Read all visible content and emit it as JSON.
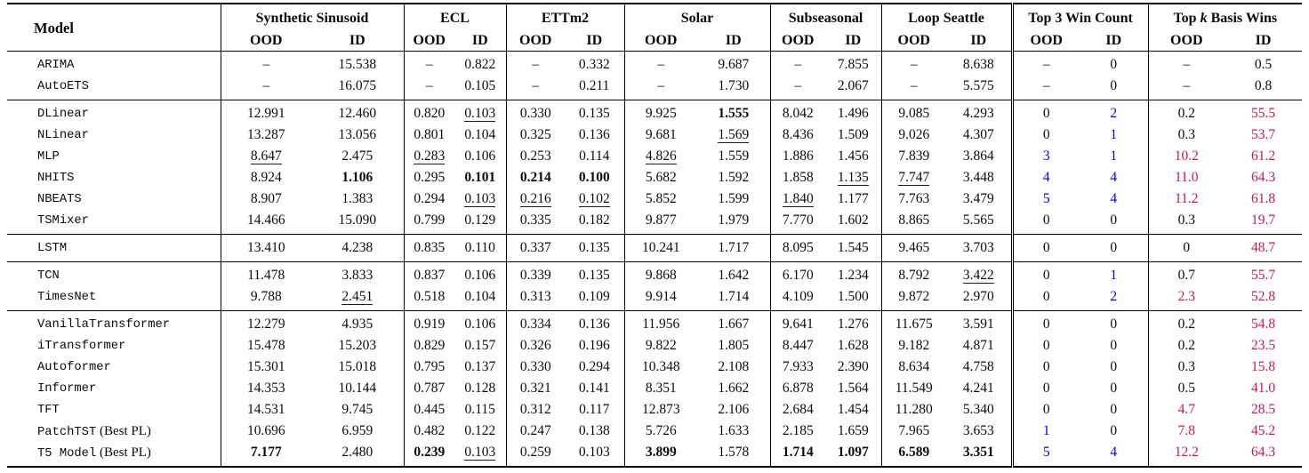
{
  "table": {
    "colors": {
      "blue": "#0000E6",
      "red": "#C2185B",
      "text": "#0b0b0b"
    },
    "header": {
      "model_label": "Model",
      "sub_headers": [
        "OOD",
        "ID"
      ],
      "groups": [
        {
          "label_parts": [
            {
              "t": "Synthetic Sinusoid"
            }
          ]
        },
        {
          "label_parts": [
            {
              "t": "ECL"
            }
          ]
        },
        {
          "label_parts": [
            {
              "t": "ETTm2"
            }
          ]
        },
        {
          "label_parts": [
            {
              "t": "Solar"
            }
          ]
        },
        {
          "label_parts": [
            {
              "t": "Subseasonal"
            }
          ]
        },
        {
          "label_parts": [
            {
              "t": "Loop Seattle"
            }
          ]
        },
        {
          "label_parts": [
            {
              "t": "Top 3 Win Count"
            }
          ]
        },
        {
          "label_parts": [
            {
              "t": "Top "
            },
            {
              "t": "k",
              "italic": true
            },
            {
              "t": " Basis Wins"
            }
          ]
        }
      ]
    },
    "groups": [
      {
        "rows": [
          {
            "model": "ARIMA",
            "suffix": "",
            "cells": [
              "–",
              "15.538",
              "–",
              "0.822",
              "–",
              "0.332",
              "–",
              "9.687",
              "–",
              "7.855",
              "–",
              "8.638",
              "–",
              "0",
              "–",
              "0.5"
            ]
          },
          {
            "model": "AutoETS",
            "suffix": "",
            "cells": [
              "–",
              "16.075",
              "–",
              "0.105",
              "–",
              "0.211",
              "–",
              "1.730",
              "–",
              "2.067",
              "–",
              "5.575",
              "–",
              "0",
              "–",
              "0.8"
            ]
          }
        ]
      },
      {
        "rows": [
          {
            "model": "DLinear",
            "suffix": "",
            "cells": [
              "12.991",
              "12.460",
              "0.820",
              {
                "v": "0.103",
                "u": true
              },
              "0.330",
              "0.135",
              "9.925",
              {
                "v": "1.555",
                "b": true
              },
              "8.042",
              "1.496",
              "9.085",
              "4.293",
              "0",
              {
                "v": "2",
                "c": "blue"
              },
              "0.2",
              {
                "v": "55.5",
                "c": "red"
              }
            ]
          },
          {
            "model": "NLinear",
            "suffix": "",
            "cells": [
              "13.287",
              "13.056",
              "0.801",
              "0.104",
              "0.325",
              "0.136",
              "9.681",
              {
                "v": "1.569",
                "u": true
              },
              "8.436",
              "1.509",
              "9.026",
              "4.307",
              "0",
              {
                "v": "1",
                "c": "blue"
              },
              "0.3",
              {
                "v": "53.7",
                "c": "red"
              }
            ]
          },
          {
            "model": "MLP",
            "suffix": "",
            "cells": [
              {
                "v": "8.647",
                "u": true
              },
              "2.475",
              {
                "v": "0.283",
                "u": true
              },
              "0.106",
              "0.253",
              "0.114",
              {
                "v": "4.826",
                "u": true
              },
              "1.559",
              "1.886",
              "1.456",
              "7.839",
              "3.864",
              {
                "v": "3",
                "c": "blue"
              },
              {
                "v": "1",
                "c": "blue"
              },
              {
                "v": "10.2",
                "c": "red"
              },
              {
                "v": "61.2",
                "c": "red"
              }
            ]
          },
          {
            "model": "NHITS",
            "suffix": "",
            "cells": [
              "8.924",
              {
                "v": "1.106",
                "b": true
              },
              "0.295",
              {
                "v": "0.101",
                "b": true
              },
              {
                "v": "0.214",
                "b": true
              },
              {
                "v": "0.100",
                "b": true
              },
              "5.682",
              "1.592",
              "1.858",
              {
                "v": "1.135",
                "u": true
              },
              {
                "v": "7.747",
                "u": true
              },
              "3.448",
              {
                "v": "4",
                "c": "blue"
              },
              {
                "v": "4",
                "c": "blue"
              },
              {
                "v": "11.0",
                "c": "red"
              },
              {
                "v": "64.3",
                "c": "red"
              }
            ]
          },
          {
            "model": "NBEATS",
            "suffix": "",
            "cells": [
              "8.907",
              "1.383",
              "0.294",
              {
                "v": "0.103",
                "u": true
              },
              {
                "v": "0.216",
                "u": true
              },
              {
                "v": "0.102",
                "u": true
              },
              "5.852",
              "1.599",
              {
                "v": "1.840",
                "u": true
              },
              "1.177",
              "7.763",
              "3.479",
              {
                "v": "5",
                "c": "blue"
              },
              {
                "v": "4",
                "c": "blue"
              },
              {
                "v": "11.2",
                "c": "red"
              },
              {
                "v": "61.8",
                "c": "red"
              }
            ]
          },
          {
            "model": "TSMixer",
            "suffix": "",
            "cells": [
              "14.466",
              "15.090",
              "0.799",
              "0.129",
              "0.335",
              "0.182",
              "9.877",
              "1.979",
              "7.770",
              "1.602",
              "8.865",
              "5.565",
              "0",
              "0",
              "0.3",
              {
                "v": "19.7",
                "c": "red"
              }
            ]
          }
        ]
      },
      {
        "rows": [
          {
            "model": "LSTM",
            "suffix": "",
            "cells": [
              "13.410",
              "4.238",
              "0.835",
              "0.110",
              "0.337",
              "0.135",
              "10.241",
              "1.717",
              "8.095",
              "1.545",
              "9.465",
              "3.703",
              "0",
              "0",
              "0",
              {
                "v": "48.7",
                "c": "red"
              }
            ]
          }
        ]
      },
      {
        "rows": [
          {
            "model": "TCN",
            "suffix": "",
            "cells": [
              "11.478",
              "3.833",
              "0.837",
              "0.106",
              "0.339",
              "0.135",
              "9.868",
              "1.642",
              "6.170",
              "1.234",
              "8.792",
              {
                "v": "3.422",
                "u": true
              },
              "0",
              {
                "v": "1",
                "c": "blue"
              },
              "0.7",
              {
                "v": "55.7",
                "c": "red"
              }
            ]
          },
          {
            "model": "TimesNet",
            "suffix": "",
            "cells": [
              "9.788",
              {
                "v": "2.451",
                "u": true
              },
              "0.518",
              "0.104",
              "0.313",
              "0.109",
              "9.914",
              "1.714",
              "4.109",
              "1.500",
              "9.872",
              "2.970",
              "0",
              {
                "v": "2",
                "c": "blue"
              },
              {
                "v": "2.3",
                "c": "red"
              },
              {
                "v": "52.8",
                "c": "red"
              }
            ]
          }
        ]
      },
      {
        "rows": [
          {
            "model": "VanillaTransformer",
            "suffix": "",
            "cells": [
              "12.279",
              "4.935",
              "0.919",
              "0.106",
              "0.334",
              "0.136",
              "11.956",
              "1.667",
              "9.641",
              "1.276",
              "11.675",
              "3.591",
              "0",
              "0",
              "0.2",
              {
                "v": "54.8",
                "c": "red"
              }
            ]
          },
          {
            "model": "iTransformer",
            "suffix": "",
            "cells": [
              "15.478",
              "15.203",
              "0.829",
              "0.157",
              "0.326",
              "0.196",
              "9.822",
              "1.805",
              "8.447",
              "1.628",
              "9.182",
              "4.871",
              "0",
              "0",
              "0.2",
              {
                "v": "23.5",
                "c": "red"
              }
            ]
          },
          {
            "model": "Autoformer",
            "suffix": "",
            "cells": [
              "15.301",
              "15.018",
              "0.795",
              "0.137",
              "0.330",
              "0.294",
              "10.348",
              "2.108",
              "7.933",
              "2.390",
              "8.634",
              "4.758",
              "0",
              "0",
              "0.3",
              {
                "v": "15.8",
                "c": "red"
              }
            ]
          },
          {
            "model": "Informer",
            "suffix": "",
            "cells": [
              "14.353",
              "10.144",
              "0.787",
              "0.128",
              "0.321",
              "0.141",
              "8.351",
              "1.662",
              "6.878",
              "1.564",
              "11.549",
              "4.241",
              "0",
              "0",
              "0.5",
              {
                "v": "41.0",
                "c": "red"
              }
            ]
          },
          {
            "model": "TFT",
            "suffix": "",
            "cells": [
              "14.531",
              "9.745",
              "0.445",
              "0.115",
              "0.312",
              "0.117",
              "12.873",
              "2.106",
              "2.684",
              "1.454",
              "11.280",
              "5.340",
              "0",
              "0",
              {
                "v": "4.7",
                "c": "red"
              },
              {
                "v": "28.5",
                "c": "red"
              }
            ]
          },
          {
            "model": "PatchTST",
            "suffix": " (Best PL)",
            "cells": [
              "10.696",
              "6.959",
              "0.482",
              "0.122",
              "0.247",
              "0.138",
              "5.726",
              "1.633",
              "2.185",
              "1.659",
              "7.965",
              "3.653",
              {
                "v": "1",
                "c": "blue"
              },
              "0",
              {
                "v": "7.8",
                "c": "red"
              },
              {
                "v": "45.2",
                "c": "red"
              }
            ]
          },
          {
            "model": "T5 Model",
            "suffix": " (Best PL)",
            "cells": [
              {
                "v": "7.177",
                "b": true
              },
              "2.480",
              {
                "v": "0.239",
                "b": true
              },
              {
                "v": "0.103",
                "u": true
              },
              "0.259",
              "0.103",
              {
                "v": "3.899",
                "b": true
              },
              "1.578",
              {
                "v": "1.714",
                "b": true
              },
              {
                "v": "1.097",
                "b": true
              },
              {
                "v": "6.589",
                "b": true
              },
              {
                "v": "3.351",
                "b": true
              },
              {
                "v": "5",
                "c": "blue"
              },
              {
                "v": "4",
                "c": "blue"
              },
              {
                "v": "12.2",
                "c": "red"
              },
              {
                "v": "64.3",
                "c": "red"
              }
            ]
          }
        ]
      }
    ]
  }
}
